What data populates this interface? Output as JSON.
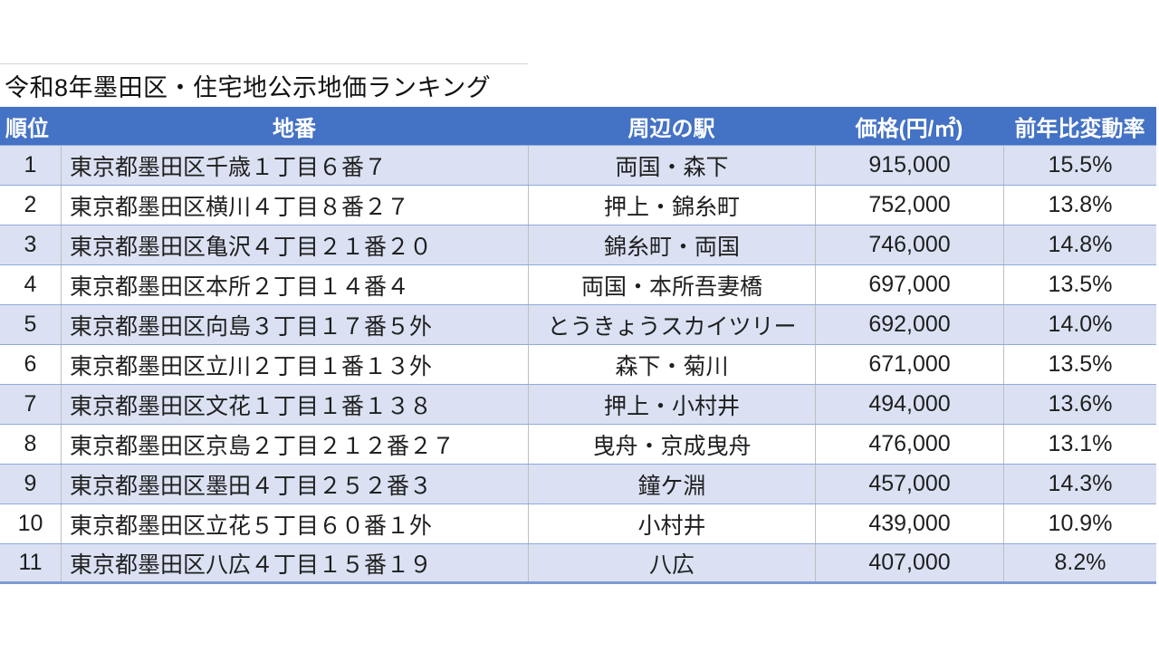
{
  "title": "令和8年墨田区・住宅地公示地価ランキング",
  "colors": {
    "header_bg": "#4472C4",
    "band_row_bg": "#DBE1F3",
    "row_border": "#8EA9DB",
    "column_border": "#BFBFBF",
    "table_bottom_border": "#7E9BD4"
  },
  "table": {
    "columns": [
      "順位",
      "地番",
      "周辺の駅",
      "価格(円/㎡)",
      "前年比変動率"
    ],
    "rows": [
      {
        "rank": "1",
        "address": "東京都墨田区千歳１丁目６番７",
        "stations": "両国・森下",
        "price": "915,000",
        "change": "15.5%"
      },
      {
        "rank": "2",
        "address": "東京都墨田区横川４丁目８番２７",
        "stations": "押上・錦糸町",
        "price": "752,000",
        "change": "13.8%"
      },
      {
        "rank": "3",
        "address": "東京都墨田区亀沢４丁目２１番２０",
        "stations": "錦糸町・両国",
        "price": "746,000",
        "change": "14.8%"
      },
      {
        "rank": "4",
        "address": "東京都墨田区本所２丁目１４番４",
        "stations": "両国・本所吾妻橋",
        "price": "697,000",
        "change": "13.5%"
      },
      {
        "rank": "5",
        "address": "東京都墨田区向島３丁目１７番５外",
        "stations": "とうきょうスカイツリー",
        "price": "692,000",
        "change": "14.0%"
      },
      {
        "rank": "6",
        "address": "東京都墨田区立川２丁目１番１３外",
        "stations": "森下・菊川",
        "price": "671,000",
        "change": "13.5%"
      },
      {
        "rank": "7",
        "address": "東京都墨田区文花１丁目１番１３８",
        "stations": "押上・小村井",
        "price": "494,000",
        "change": "13.6%"
      },
      {
        "rank": "8",
        "address": "東京都墨田区京島２丁目２１２番２７",
        "stations": "曳舟・京成曳舟",
        "price": "476,000",
        "change": "13.1%"
      },
      {
        "rank": "9",
        "address": "東京都墨田区墨田４丁目２５２番３",
        "stations": "鐘ケ淵",
        "price": "457,000",
        "change": "14.3%"
      },
      {
        "rank": "10",
        "address": "東京都墨田区立花５丁目６０番１外",
        "stations": "小村井",
        "price": "439,000",
        "change": "10.9%"
      },
      {
        "rank": "11",
        "address": "東京都墨田区八広４丁目１５番１９",
        "stations": "八広",
        "price": "407,000",
        "change": "8.2%"
      }
    ]
  },
  "chart_data": {
    "type": "table",
    "title": "令和8年墨田区・住宅地公示地価ランキング",
    "columns": [
      "順位",
      "地番",
      "周辺の駅",
      "価格(円/㎡)",
      "前年比変動率"
    ],
    "price_values_yen_per_m2": [
      915000,
      752000,
      746000,
      697000,
      692000,
      671000,
      494000,
      476000,
      457000,
      439000,
      407000
    ],
    "yoy_change_percent": [
      15.5,
      13.8,
      14.8,
      13.5,
      14.0,
      13.5,
      13.6,
      13.1,
      14.3,
      10.9,
      8.2
    ],
    "layout_hints": {
      "banded_rows": "odd ranks shaded light blue",
      "header": "blue fill, white bold text"
    }
  }
}
